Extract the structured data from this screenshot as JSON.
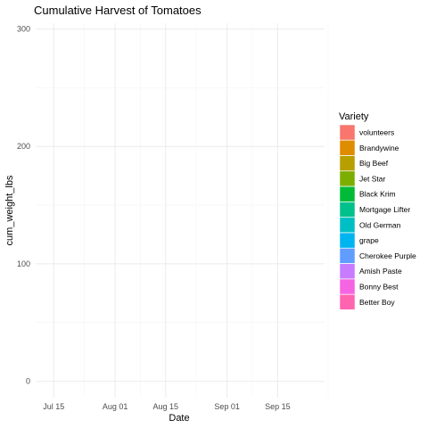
{
  "chart_data": {
    "type": "area",
    "title": "Cumulative Harvest of Tomatoes",
    "xlabel": "Date",
    "ylabel": "cum_weight_lbs",
    "x_ticks": [
      "Jul 15",
      "Aug 01",
      "Aug 15",
      "Sep 01",
      "Sep 15"
    ],
    "x_tick_dates": [
      "2020-07-15",
      "2020-08-01",
      "2020-08-15",
      "2020-09-01",
      "2020-09-15"
    ],
    "xlim": [
      "2020-07-10",
      "2020-09-28"
    ],
    "y_ticks": [
      0,
      100,
      200,
      300
    ],
    "ylim": [
      -14,
      305
    ],
    "grid": true,
    "legend": {
      "title": "Variety",
      "position": "right",
      "entries": [
        {
          "name": "volunteers",
          "color": "#F8766D"
        },
        {
          "name": "Brandywine",
          "color": "#DE8C00"
        },
        {
          "name": "Big Beef",
          "color": "#B79F00"
        },
        {
          "name": "Jet Star",
          "color": "#7CAE00"
        },
        {
          "name": "Black Krim",
          "color": "#00BA38"
        },
        {
          "name": "Mortgage Lifter",
          "color": "#00C08B"
        },
        {
          "name": "Old German",
          "color": "#00BFC4"
        },
        {
          "name": "grape",
          "color": "#00B4F0"
        },
        {
          "name": "Cherokee Purple",
          "color": "#619CFF"
        },
        {
          "name": "Amish Paste",
          "color": "#C77CFF"
        },
        {
          "name": "Bonny Best",
          "color": "#F564E3"
        },
        {
          "name": "Better Boy",
          "color": "#FF64B0"
        }
      ]
    },
    "series": []
  }
}
